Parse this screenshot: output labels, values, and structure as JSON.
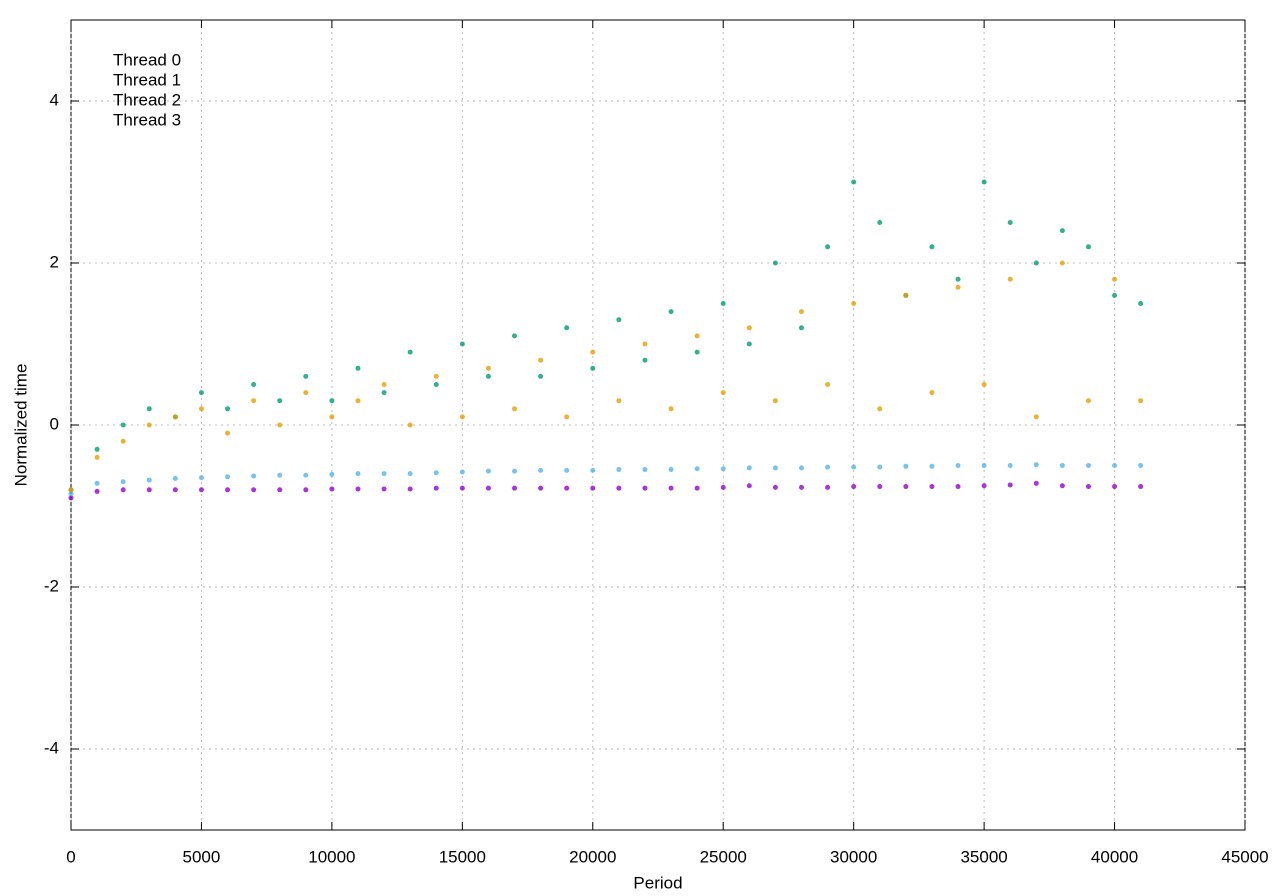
{
  "chart_data": {
    "type": "scatter",
    "xlabel": "Period",
    "ylabel": "Normalized time",
    "x": [
      0,
      1000,
      2000,
      3000,
      4000,
      5000,
      6000,
      7000,
      8000,
      9000,
      10000,
      11000,
      12000,
      13000,
      14000,
      15000,
      16000,
      17000,
      18000,
      19000,
      20000,
      21000,
      22000,
      23000,
      24000,
      25000,
      26000,
      27000,
      28000,
      29000,
      30000,
      31000,
      32000,
      33000,
      34000,
      35000,
      36000,
      37000,
      38000,
      39000,
      40000,
      41000
    ],
    "series": [
      {
        "name": "Thread 0",
        "color": "#9400d3",
        "values": [
          -0.9,
          -0.82,
          -0.8,
          -0.8,
          -0.8,
          -0.8,
          -0.8,
          -0.8,
          -0.8,
          -0.8,
          -0.79,
          -0.79,
          -0.79,
          -0.79,
          -0.78,
          -0.78,
          -0.78,
          -0.78,
          -0.78,
          -0.78,
          -0.78,
          -0.78,
          -0.78,
          -0.78,
          -0.78,
          -0.77,
          -0.75,
          -0.77,
          -0.77,
          -0.77,
          -0.76,
          -0.76,
          -0.76,
          -0.76,
          -0.76,
          -0.75,
          -0.74,
          -0.72,
          -0.75,
          -0.76,
          -0.76,
          -0.76
        ]
      },
      {
        "name": "Thread 1",
        "color": "#56b4e9",
        "values": [
          -0.85,
          -0.72,
          -0.7,
          -0.68,
          -0.66,
          -0.65,
          -0.64,
          -0.63,
          -0.62,
          -0.62,
          -0.61,
          -0.6,
          -0.6,
          -0.6,
          -0.59,
          -0.58,
          -0.57,
          -0.57,
          -0.56,
          -0.56,
          -0.56,
          -0.55,
          -0.55,
          -0.55,
          -0.54,
          -0.54,
          -0.53,
          -0.53,
          -0.53,
          -0.52,
          -0.52,
          -0.52,
          -0.51,
          -0.51,
          -0.5,
          -0.5,
          -0.5,
          -0.49,
          -0.5,
          -0.5,
          -0.5,
          -0.5
        ]
      },
      {
        "name": "Thread 2",
        "color": "#009e73",
        "values": [
          -0.8,
          -0.3,
          0,
          0.2,
          0.1,
          0.4,
          0.2,
          0.5,
          0.3,
          0.6,
          0.3,
          0.7,
          0.4,
          0.9,
          0.5,
          1.0,
          0.6,
          1.1,
          0.6,
          1.2,
          0.7,
          1.3,
          0.8,
          1.4,
          0.9,
          1.5,
          1.0,
          2.0,
          1.2,
          2.2,
          3.0,
          2.5,
          1.6,
          2.2,
          1.8,
          3.0,
          2.5,
          2.0,
          2.4,
          2.2,
          1.6,
          1.5
        ]
      },
      {
        "name": "Thread 3",
        "color": "#e69f00",
        "values": [
          -0.8,
          -0.4,
          -0.2,
          0,
          0.1,
          0.2,
          -0.1,
          0.3,
          0,
          0.4,
          0.1,
          0.3,
          0.5,
          0,
          0.6,
          0.1,
          0.7,
          0.2,
          0.8,
          0.1,
          0.9,
          0.3,
          1.0,
          0.2,
          1.1,
          0.4,
          1.2,
          0.3,
          1.4,
          0.5,
          1.5,
          0.2,
          1.6,
          0.4,
          1.7,
          0.5,
          1.8,
          0.1,
          2.0,
          0.3,
          1.8,
          0.3
        ]
      }
    ],
    "xlim": [
      0,
      45000
    ],
    "ylim": [
      -5,
      5
    ],
    "xticks": [
      0,
      5000,
      10000,
      15000,
      20000,
      25000,
      30000,
      35000,
      40000,
      45000
    ],
    "yticks": [
      -4,
      -2,
      0,
      2,
      4
    ],
    "grid": true,
    "legend": "top-left"
  }
}
